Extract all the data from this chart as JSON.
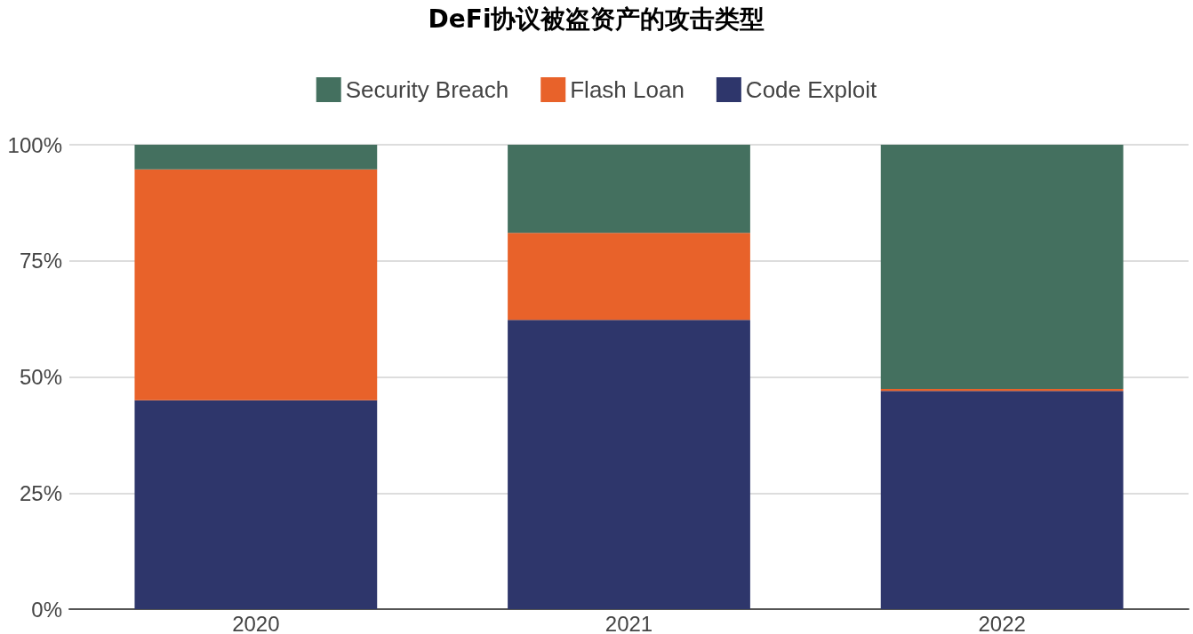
{
  "chart_data": {
    "type": "bar",
    "title": "DeFi协议被盗资产的攻击类型",
    "categories": [
      "2020",
      "2021",
      "2022"
    ],
    "stacked": true,
    "series": [
      {
        "name": "Code Exploit",
        "color": "#2e366b",
        "values": [
          45,
          62.3,
          47
        ]
      },
      {
        "name": "Flash Loan",
        "color": "#e8622a",
        "values": [
          49.7,
          18.7,
          0.4
        ]
      },
      {
        "name": "Security Breach",
        "color": "#44705f",
        "values": [
          5.3,
          19,
          52.6
        ]
      }
    ],
    "ylim": [
      0,
      100
    ],
    "yticks": [
      {
        "value": 0,
        "label": "0%"
      },
      {
        "value": 25,
        "label": "25%"
      },
      {
        "value": 50,
        "label": "50%"
      },
      {
        "value": 75,
        "label": "75%"
      },
      {
        "value": 100,
        "label": "100%"
      }
    ],
    "grid": "y",
    "legend": "top"
  }
}
